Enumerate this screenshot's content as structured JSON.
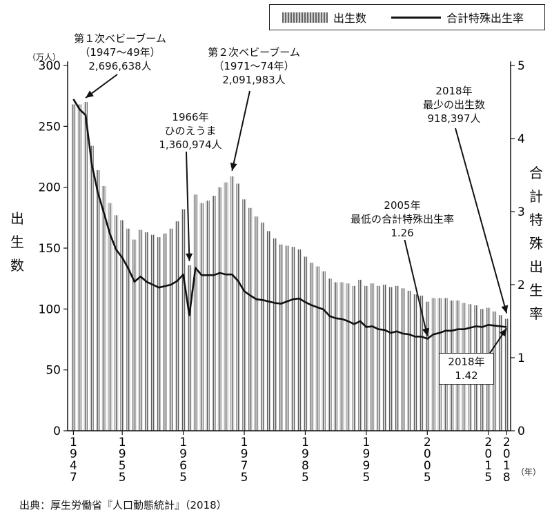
{
  "legend": {
    "births": "出生数",
    "tfr": "合計特殊出生率"
  },
  "left_axis_unit": "（万人）",
  "left_axis_title": [
    "出",
    "生",
    "数"
  ],
  "right_axis_title": [
    "合",
    "計",
    "特",
    "殊",
    "出",
    "生",
    "率"
  ],
  "year_unit": "（年）",
  "source": "出典：厚生労働省『人口動態統計』（2018）",
  "annotations": {
    "boom1": [
      "第１次ベビーブーム",
      "（1947～49年）",
      "2,696,638人"
    ],
    "hinoe": [
      "1966年",
      "ひのえうま",
      "1,360,974人"
    ],
    "boom2": [
      "第２次ベビーブーム",
      "（1971～74年）",
      "2,091,983人"
    ],
    "min_births": [
      "2018年",
      "最少の出生数",
      "918,397人"
    ],
    "min_tfr": [
      "2005年",
      "最低の合計特殊出生率",
      "1.26"
    ],
    "tfr2018": [
      "2018年",
      "1.42"
    ]
  },
  "chart_data": {
    "type": "bar",
    "x_tick_labels": [
      "1947",
      "1955",
      "1965",
      "1975",
      "1985",
      "1995",
      "2005",
      "2015",
      "2018"
    ],
    "y_left": {
      "ylim": [
        0,
        300
      ],
      "ticks": [
        0,
        50,
        100,
        150,
        200,
        250,
        300
      ],
      "unit": "万人"
    },
    "y_right": {
      "ylim": [
        0,
        5
      ],
      "ticks": [
        0,
        1,
        2,
        3,
        4,
        5
      ]
    },
    "years": [
      1947,
      1948,
      1949,
      1950,
      1951,
      1952,
      1953,
      1954,
      1955,
      1956,
      1957,
      1958,
      1959,
      1960,
      1961,
      1962,
      1963,
      1964,
      1965,
      1966,
      1967,
      1968,
      1969,
      1970,
      1971,
      1972,
      1973,
      1974,
      1975,
      1976,
      1977,
      1978,
      1979,
      1980,
      1981,
      1982,
      1983,
      1984,
      1985,
      1986,
      1987,
      1988,
      1989,
      1990,
      1991,
      1992,
      1993,
      1994,
      1995,
      1996,
      1997,
      1998,
      1999,
      2000,
      2001,
      2002,
      2003,
      2004,
      2005,
      2006,
      2007,
      2008,
      2009,
      2010,
      2011,
      2012,
      2013,
      2014,
      2015,
      2016,
      2017,
      2018
    ],
    "series": [
      {
        "name": "出生数",
        "type": "bar",
        "values": [
          268,
          268,
          270,
          234,
          214,
          201,
          187,
          177,
          173,
          166,
          157,
          165,
          163,
          161,
          159,
          162,
          166,
          172,
          182,
          136,
          194,
          187,
          189,
          193,
          200,
          204,
          209,
          203,
          190,
          183,
          176,
          171,
          164,
          158,
          153,
          152,
          151,
          149,
          143,
          138,
          135,
          131,
          125,
          122,
          122,
          121,
          119,
          124,
          119,
          121,
          119,
          120,
          118,
          119,
          117,
          115,
          112,
          111,
          106,
          109,
          109,
          109,
          107,
          107,
          105,
          104,
          103,
          100,
          101,
          98,
          95,
          92
        ]
      },
      {
        "name": "合計特殊出生率",
        "type": "line",
        "values": [
          4.54,
          4.4,
          4.32,
          3.65,
          3.26,
          2.98,
          2.69,
          2.48,
          2.37,
          2.22,
          2.04,
          2.11,
          2.04,
          2.0,
          1.96,
          1.98,
          2.0,
          2.05,
          2.14,
          1.58,
          2.23,
          2.13,
          2.13,
          2.13,
          2.16,
          2.14,
          2.14,
          2.05,
          1.91,
          1.85,
          1.8,
          1.79,
          1.77,
          1.75,
          1.74,
          1.77,
          1.8,
          1.81,
          1.76,
          1.72,
          1.69,
          1.66,
          1.57,
          1.54,
          1.53,
          1.5,
          1.46,
          1.5,
          1.42,
          1.43,
          1.39,
          1.38,
          1.34,
          1.36,
          1.33,
          1.32,
          1.29,
          1.29,
          1.26,
          1.32,
          1.34,
          1.37,
          1.37,
          1.39,
          1.39,
          1.41,
          1.43,
          1.42,
          1.45,
          1.44,
          1.43,
          1.42
        ]
      }
    ]
  }
}
